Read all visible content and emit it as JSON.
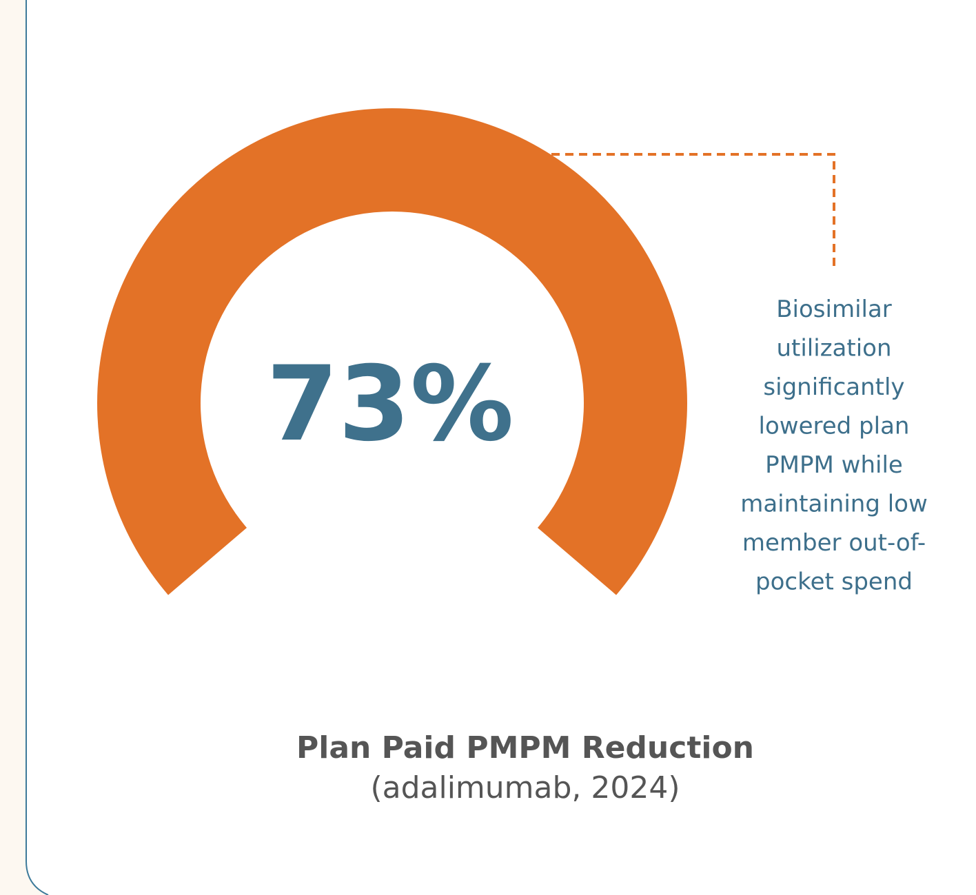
{
  "stat": {
    "value_label": "73%"
  },
  "callout": {
    "lines": [
      "Biosimilar",
      "utilization",
      "significantly",
      "lowered plan",
      "PMPM while",
      "maintaining low",
      "member out-of-",
      "pocket spend"
    ]
  },
  "caption": {
    "title": "Plan Paid PMPM Reduction",
    "subtitle": "(adalimumab, 2024)"
  }
}
